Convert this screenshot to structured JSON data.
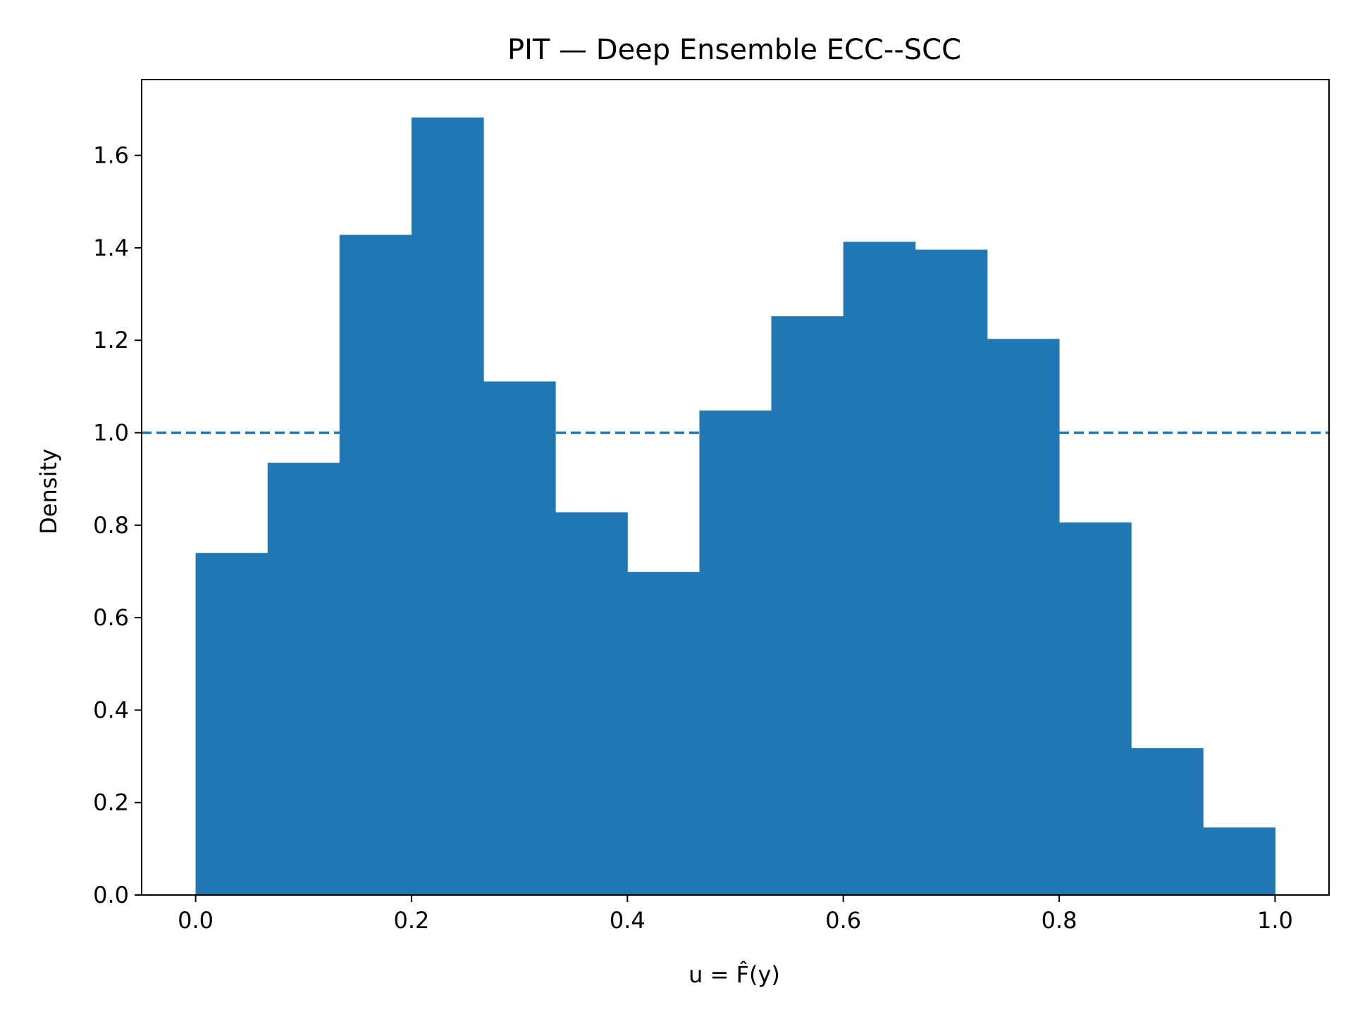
{
  "colors": {
    "bar": "#2077b4",
    "reference_line": "#2077b4",
    "axes": "#000000",
    "background": "#ffffff"
  },
  "chart_data": {
    "type": "bar",
    "title": "PIT — Deep Ensemble ECC--SCC",
    "xlabel": "u = F̂(y)",
    "ylabel": "Density",
    "xlim": [
      -0.05,
      1.05
    ],
    "ylim": [
      0,
      1.764
    ],
    "grid": false,
    "legend": "none",
    "bin_edges": [
      0.0,
      0.0667,
      0.1333,
      0.2,
      0.2667,
      0.3333,
      0.4,
      0.4667,
      0.5333,
      0.6,
      0.6667,
      0.7333,
      0.8,
      0.8667,
      0.9333,
      1.0
    ],
    "values": [
      0.74,
      0.935,
      1.428,
      1.682,
      1.111,
      0.828,
      0.699,
      1.048,
      1.252,
      1.413,
      1.396,
      1.203,
      0.806,
      0.318,
      0.146
    ],
    "reference_line": {
      "y": 1.0,
      "style": "dashed"
    },
    "x_ticks": [
      0.0,
      0.2,
      0.4,
      0.6,
      0.8,
      1.0
    ],
    "x_tick_labels": [
      "0.0",
      "0.2",
      "0.4",
      "0.6",
      "0.8",
      "1.0"
    ],
    "y_ticks": [
      0.0,
      0.2,
      0.4,
      0.6,
      0.8,
      1.0,
      1.2,
      1.4,
      1.6
    ],
    "y_tick_labels": [
      "0.0",
      "0.2",
      "0.4",
      "0.6",
      "0.8",
      "1.0",
      "1.2",
      "1.4",
      "1.6"
    ]
  }
}
